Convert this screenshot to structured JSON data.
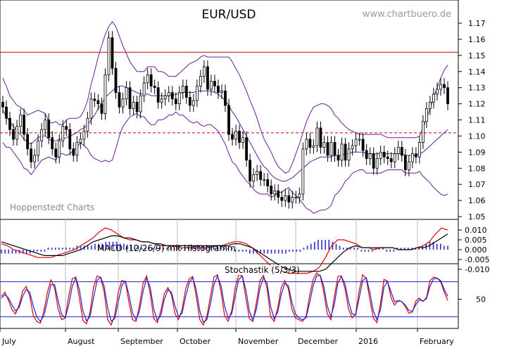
{
  "chart_data": [
    {
      "type": "candlestick",
      "panel": "price",
      "title": "EUR/USD",
      "watermark": "www.chartbuero.de",
      "credit": "Hoppenstedt Charts",
      "months": [
        "July",
        "August",
        "September",
        "October",
        "November",
        "December",
        "2016",
        "February"
      ],
      "yticks": [
        "1.17",
        "1.16",
        "1.15",
        "1.14",
        "1.13",
        "1.12",
        "1.11",
        "1.10",
        "1.09",
        "1.08",
        "1.07",
        "1.06",
        "1.05"
      ],
      "ylim": [
        1.045,
        1.175
      ],
      "horizontal_lines": [
        {
          "value": 1.152,
          "style": "solid",
          "color": "#cc0000"
        },
        {
          "value": 1.102,
          "style": "dashed",
          "color": "#cc0000"
        }
      ],
      "overlay": "Bollinger Bands",
      "close": [
        1.118,
        1.111,
        1.104,
        1.098,
        1.106,
        1.113,
        1.101,
        1.092,
        1.084,
        1.088,
        1.097,
        1.104,
        1.11,
        1.099,
        1.092,
        1.087,
        1.097,
        1.106,
        1.104,
        1.092,
        1.088,
        1.096,
        1.098,
        1.103,
        1.111,
        1.123,
        1.122,
        1.12,
        1.114,
        1.138,
        1.161,
        1.142,
        1.127,
        1.118,
        1.123,
        1.13,
        1.117,
        1.121,
        1.115,
        1.125,
        1.133,
        1.138,
        1.131,
        1.13,
        1.121,
        1.123,
        1.125,
        1.127,
        1.123,
        1.12,
        1.127,
        1.131,
        1.124,
        1.119,
        1.122,
        1.131,
        1.137,
        1.143,
        1.129,
        1.134,
        1.131,
        1.127,
        1.128,
        1.119,
        1.101,
        1.098,
        1.103,
        1.096,
        1.099,
        1.085,
        1.072,
        1.076,
        1.078,
        1.073,
        1.073,
        1.069,
        1.064,
        1.066,
        1.062,
        1.06,
        1.063,
        1.059,
        1.062,
        1.062,
        1.064,
        1.092,
        1.098,
        1.093,
        1.094,
        1.105,
        1.093,
        1.096,
        1.088,
        1.096,
        1.088,
        1.085,
        1.095,
        1.085,
        1.092,
        1.094,
        1.098,
        1.098,
        1.091,
        1.086,
        1.089,
        1.08,
        1.086,
        1.09,
        1.087,
        1.086,
        1.084,
        1.089,
        1.093,
        1.088,
        1.079,
        1.084,
        1.089,
        1.087,
        1.096,
        1.109,
        1.117,
        1.121,
        1.126,
        1.129,
        1.132,
        1.13,
        1.12
      ],
      "upper_band": [
        1.136,
        1.131,
        1.125,
        1.122,
        1.119,
        1.118,
        1.116,
        1.113,
        1.114,
        1.115,
        1.116,
        1.115,
        1.114,
        1.109,
        1.108,
        1.109,
        1.107,
        1.107,
        1.11,
        1.111,
        1.111,
        1.111,
        1.112,
        1.116,
        1.122,
        1.132,
        1.14,
        1.149,
        1.156,
        1.163,
        1.168,
        1.171,
        1.168,
        1.162,
        1.156,
        1.151,
        1.146,
        1.143,
        1.14,
        1.14,
        1.14,
        1.143,
        1.143,
        1.143,
        1.14,
        1.14,
        1.139,
        1.137,
        1.137,
        1.137,
        1.139,
        1.141,
        1.143,
        1.145,
        1.146,
        1.147,
        1.149,
        1.15,
        1.149,
        1.149,
        1.149,
        1.149,
        1.149,
        1.149,
        1.149,
        1.146,
        1.142,
        1.138,
        1.133,
        1.128,
        1.122,
        1.117,
        1.111,
        1.104,
        1.098,
        1.094,
        1.09,
        1.085,
        1.081,
        1.079,
        1.077,
        1.078,
        1.083,
        1.089,
        1.095,
        1.102,
        1.109,
        1.114,
        1.118,
        1.119,
        1.12,
        1.12,
        1.119,
        1.117,
        1.113,
        1.111,
        1.108,
        1.106,
        1.104,
        1.103,
        1.102,
        1.101,
        1.101,
        1.101,
        1.101,
        1.101,
        1.101,
        1.101,
        1.1,
        1.099,
        1.099,
        1.099,
        1.099,
        1.099,
        1.099,
        1.099,
        1.099,
        1.099,
        1.1,
        1.105,
        1.111,
        1.117,
        1.124,
        1.13,
        1.136,
        1.141,
        1.144
      ],
      "middle_band": [
        1.116,
        1.112,
        1.109,
        1.106,
        1.103,
        1.101,
        1.098,
        1.096,
        1.095,
        1.097,
        1.099,
        1.1,
        1.1,
        1.098,
        1.097,
        1.097,
        1.098,
        1.098,
        1.099,
        1.1,
        1.101,
        1.102,
        1.104,
        1.105,
        1.107,
        1.11,
        1.113,
        1.117,
        1.12,
        1.124,
        1.126,
        1.128,
        1.13,
        1.131,
        1.131,
        1.13,
        1.129,
        1.128,
        1.127,
        1.126,
        1.126,
        1.126,
        1.125,
        1.125,
        1.125,
        1.125,
        1.125,
        1.125,
        1.125,
        1.126,
        1.126,
        1.127,
        1.127,
        1.127,
        1.127,
        1.128,
        1.128,
        1.128,
        1.128,
        1.128,
        1.127,
        1.126,
        1.124,
        1.122,
        1.119,
        1.115,
        1.112,
        1.108,
        1.104,
        1.1,
        1.096,
        1.092,
        1.088,
        1.084,
        1.081,
        1.079,
        1.076,
        1.074,
        1.073,
        1.072,
        1.072,
        1.073,
        1.074,
        1.076,
        1.078,
        1.08,
        1.082,
        1.084,
        1.085,
        1.086,
        1.087,
        1.087,
        1.087,
        1.087,
        1.088,
        1.088,
        1.088,
        1.089,
        1.089,
        1.09,
        1.09,
        1.09,
        1.09,
        1.089,
        1.089,
        1.089,
        1.089,
        1.089,
        1.089,
        1.089,
        1.089,
        1.089,
        1.089,
        1.089,
        1.088,
        1.088,
        1.088,
        1.088,
        1.089,
        1.09,
        1.092,
        1.094,
        1.096,
        1.098,
        1.1,
        1.102,
        1.104
      ],
      "lower_band": [
        1.096,
        1.093,
        1.093,
        1.09,
        1.087,
        1.084,
        1.08,
        1.079,
        1.076,
        1.079,
        1.082,
        1.085,
        1.086,
        1.087,
        1.086,
        1.085,
        1.089,
        1.089,
        1.088,
        1.089,
        1.091,
        1.093,
        1.096,
        1.094,
        1.092,
        1.088,
        1.086,
        1.085,
        1.084,
        1.085,
        1.084,
        1.085,
        1.092,
        1.1,
        1.106,
        1.109,
        1.112,
        1.113,
        1.114,
        1.112,
        1.112,
        1.109,
        1.107,
        1.107,
        1.11,
        1.11,
        1.111,
        1.113,
        1.113,
        1.115,
        1.113,
        1.113,
        1.111,
        1.109,
        1.108,
        1.109,
        1.107,
        1.106,
        1.107,
        1.107,
        1.105,
        1.103,
        1.099,
        1.095,
        1.089,
        1.084,
        1.082,
        1.078,
        1.075,
        1.072,
        1.07,
        1.067,
        1.065,
        1.064,
        1.064,
        1.064,
        1.062,
        1.063,
        1.065,
        1.065,
        1.067,
        1.068,
        1.065,
        1.063,
        1.061,
        1.058,
        1.055,
        1.054,
        1.052,
        1.053,
        1.054,
        1.054,
        1.055,
        1.057,
        1.063,
        1.065,
        1.068,
        1.072,
        1.074,
        1.077,
        1.078,
        1.079,
        1.079,
        1.077,
        1.077,
        1.077,
        1.077,
        1.077,
        1.078,
        1.079,
        1.079,
        1.079,
        1.079,
        1.079,
        1.077,
        1.077,
        1.077,
        1.077,
        1.078,
        1.075,
        1.073,
        1.071,
        1.068,
        1.066,
        1.064,
        1.063,
        1.064
      ]
    },
    {
      "type": "line",
      "panel": "macd",
      "label": "MACD (12/26/9) mit Histogramm",
      "yticks": [
        "0.010",
        "0.005",
        "0.000",
        "-0.005",
        "-0.010"
      ],
      "ylim": [
        -0.0125,
        0.0125
      ],
      "series": [
        {
          "color": "#e00000",
          "values": [
            0.003,
            0.002,
            0.0,
            -0.001,
            -0.002,
            -0.003,
            -0.004,
            -0.004,
            -0.004,
            -0.003,
            -0.002,
            -0.001,
            0.0,
            0.002,
            0.004,
            0.006,
            0.009,
            0.011,
            0.01,
            0.008,
            0.006,
            0.005,
            0.005,
            0.004,
            0.004,
            0.003,
            0.002,
            0.002,
            0.002,
            0.001,
            0.001,
            0.001,
            0.001,
            0.001,
            0.001,
            0.002,
            0.002,
            0.003,
            0.004,
            0.004,
            0.003,
            0.001,
            -0.002,
            -0.005,
            -0.008,
            -0.01,
            -0.011,
            -0.012,
            -0.012,
            -0.012,
            -0.012,
            -0.011,
            -0.009,
            -0.004,
            0.002,
            0.005,
            0.005,
            0.004,
            0.003,
            0.001,
            0.001,
            0.0,
            0.001,
            0.001,
            0.001,
            0.0,
            0.0,
            0.0,
            0.001,
            0.002,
            0.004,
            0.008,
            0.011,
            0.01
          ]
        },
        {
          "color": "#000000",
          "values": [
            0.004,
            0.003,
            0.002,
            0.001,
            0.0,
            -0.001,
            -0.002,
            -0.003,
            -0.003,
            -0.003,
            -0.003,
            -0.002,
            -0.001,
            0.0,
            0.002,
            0.004,
            0.005,
            0.006,
            0.007,
            0.007,
            0.006,
            0.006,
            0.005,
            0.004,
            0.004,
            0.003,
            0.003,
            0.002,
            0.002,
            0.002,
            0.002,
            0.002,
            0.002,
            0.002,
            0.002,
            0.002,
            0.002,
            0.002,
            0.003,
            0.003,
            0.002,
            0.001,
            -0.001,
            -0.003,
            -0.005,
            -0.007,
            -0.009,
            -0.01,
            -0.011,
            -0.011,
            -0.011,
            -0.011,
            -0.011,
            -0.01,
            -0.007,
            -0.004,
            -0.001,
            0.001,
            0.002,
            0.001,
            0.001,
            0.001,
            0.001,
            0.001,
            0.001,
            0.0,
            0.0,
            0.0,
            0.001,
            0.001,
            0.002,
            0.004,
            0.006,
            0.008
          ]
        }
      ],
      "histogram_color": "#2b2bcc",
      "histogram": [
        -0.002,
        -0.002,
        -0.002,
        -0.002,
        -0.002,
        -0.002,
        -0.002,
        -0.002,
        -0.002,
        -0.001,
        -0.001,
        -0.001,
        -0.001,
        0.001,
        0.001,
        0.001,
        0.001,
        0.001,
        0.001,
        0.001,
        0.001,
        0.002,
        0.002,
        0.002,
        0.002,
        0.002,
        0.003,
        0.003,
        0.003,
        0.004,
        0.004,
        0.004,
        0.004,
        0.003,
        0.003,
        0.002,
        0.002,
        0.002,
        0.002,
        0.001,
        0.001,
        0.001,
        0.001,
        0.001,
        0.001,
        0.001,
        0.001,
        0.001,
        0.001,
        0.001,
        0.001,
        0.001,
        0.001,
        0.002,
        0.002,
        0.002,
        0.002,
        0.002,
        0.002,
        0.002,
        0.002,
        0.002,
        0.001,
        0.001,
        0.001,
        -0.001,
        -0.001,
        -0.001,
        -0.001,
        -0.002,
        -0.002,
        -0.002,
        -0.002,
        -0.002,
        -0.002,
        -0.002,
        -0.002,
        -0.002,
        -0.002,
        -0.002,
        -0.001,
        -0.001,
        -0.001,
        -0.001,
        0.001,
        0.002,
        0.003,
        0.004,
        0.005,
        0.005,
        0.005,
        0.005,
        0.004,
        0.003,
        0.002,
        0.001,
        0.001,
        0.001,
        0.001,
        0.001,
        -0.001,
        -0.001,
        -0.001,
        -0.001,
        0.001,
        0.001,
        0.001,
        -0.001,
        -0.001,
        -0.001,
        0.001,
        0.001,
        0.001,
        0.001,
        0.001,
        0.001,
        0.001,
        0.002,
        0.003,
        0.004,
        0.004,
        0.003,
        0.003,
        0.002,
        0.002
      ]
    },
    {
      "type": "line",
      "panel": "stochastic",
      "label": "Stochastik (5/3/3)",
      "yticks": [
        "50"
      ],
      "ylim": [
        0,
        100
      ],
      "horizontal_lines": [
        {
          "value": 80,
          "color": "#2222cc"
        },
        {
          "value": 20,
          "color": "#2222cc"
        }
      ],
      "series": [
        {
          "color": "#e00000",
          "values": [
            55,
            62,
            48,
            32,
            25,
            40,
            64,
            72,
            55,
            22,
            12,
            9,
            30,
            62,
            83,
            70,
            34,
            15,
            18,
            55,
            85,
            88,
            52,
            14,
            8,
            27,
            70,
            90,
            87,
            63,
            15,
            6,
            23,
            62,
            82,
            80,
            45,
            15,
            12,
            40,
            78,
            90,
            60,
            17,
            10,
            30,
            60,
            70,
            58,
            25,
            15,
            32,
            68,
            85,
            89,
            55,
            15,
            6,
            20,
            55,
            88,
            92,
            62,
            22,
            12,
            30,
            70,
            92,
            90,
            52,
            17,
            12,
            45,
            82,
            91,
            68,
            20,
            12,
            35,
            70,
            82,
            68,
            33,
            18,
            15,
            12,
            20,
            56,
            84,
            95,
            90,
            62,
            25,
            15,
            55,
            89,
            90,
            68,
            33,
            18,
            25,
            65,
            92,
            85,
            50,
            18,
            10,
            42,
            84,
            81,
            52,
            40,
            48,
            46,
            38,
            26,
            28,
            47,
            52,
            46,
            53,
            82,
            88,
            86,
            80,
            62,
            48
          ]
        },
        {
          "color": "#2222cc",
          "values": [
            52,
            58,
            52,
            40,
            30,
            36,
            55,
            67,
            62,
            38,
            20,
            12,
            22,
            48,
            75,
            75,
            48,
            24,
            18,
            40,
            72,
            87,
            67,
            30,
            13,
            20,
            52,
            82,
            88,
            72,
            35,
            12,
            17,
            45,
            74,
            81,
            58,
            27,
            15,
            30,
            64,
            86,
            71,
            33,
            14,
            22,
            50,
            66,
            62,
            38,
            20,
            26,
            55,
            78,
            87,
            67,
            30,
            11,
            15,
            42,
            75,
            90,
            73,
            38,
            18,
            25,
            55,
            84,
            90,
            66,
            30,
            14,
            34,
            69,
            87,
            77,
            38,
            17,
            28,
            58,
            77,
            73,
            45,
            25,
            18,
            15,
            18,
            44,
            73,
            90,
            91,
            72,
            38,
            20,
            42,
            78,
            89,
            76,
            46,
            25,
            23,
            52,
            82,
            87,
            62,
            30,
            15,
            32,
            71,
            80,
            62,
            46,
            47,
            46,
            40,
            31,
            29,
            41,
            49,
            47,
            51,
            72,
            85,
            86,
            82,
            67,
            55
          ]
        }
      ]
    }
  ]
}
